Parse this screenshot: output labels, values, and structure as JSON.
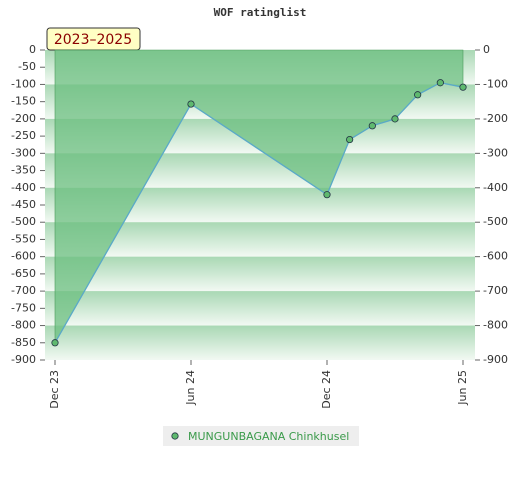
{
  "chart_data": {
    "type": "line",
    "title": "WOF ratinglist",
    "annotation": "2023–2025",
    "x": [
      "2023-12",
      "2024-06",
      "2024-12",
      "2025-01",
      "2025-02",
      "2025-03",
      "2025-04",
      "2025-05",
      "2025-06"
    ],
    "series": [
      {
        "name": "MUNGUNBAGANA Chinkhusel",
        "color": "#5fb96f",
        "line_color": "#5aa9c8",
        "fill": "#6cbf80",
        "values": [
          -850,
          -157,
          -420,
          -260,
          -220,
          -200,
          -130,
          -95,
          -108
        ]
      }
    ],
    "xlim": [
      "2023-12",
      "2025-06"
    ],
    "xticks": [
      {
        "value": "2023-12",
        "label": "Dec 23"
      },
      {
        "value": "2024-06",
        "label": "Jun 24"
      },
      {
        "value": "2024-12",
        "label": "Dec 24"
      },
      {
        "value": "2025-06",
        "label": "Jun 25"
      }
    ],
    "ylim": [
      -900,
      0
    ],
    "yticks": [
      0,
      -50,
      -100,
      -150,
      -200,
      -250,
      -300,
      -350,
      -400,
      -450,
      -500,
      -550,
      -600,
      -650,
      -700,
      -750,
      -800,
      -850,
      -900
    ],
    "y2lim": [
      -900,
      0
    ],
    "y2ticks": [
      0,
      -100,
      -200,
      -300,
      -400,
      -500,
      -600,
      -700,
      -800,
      -900
    ],
    "legend": "bottom"
  }
}
